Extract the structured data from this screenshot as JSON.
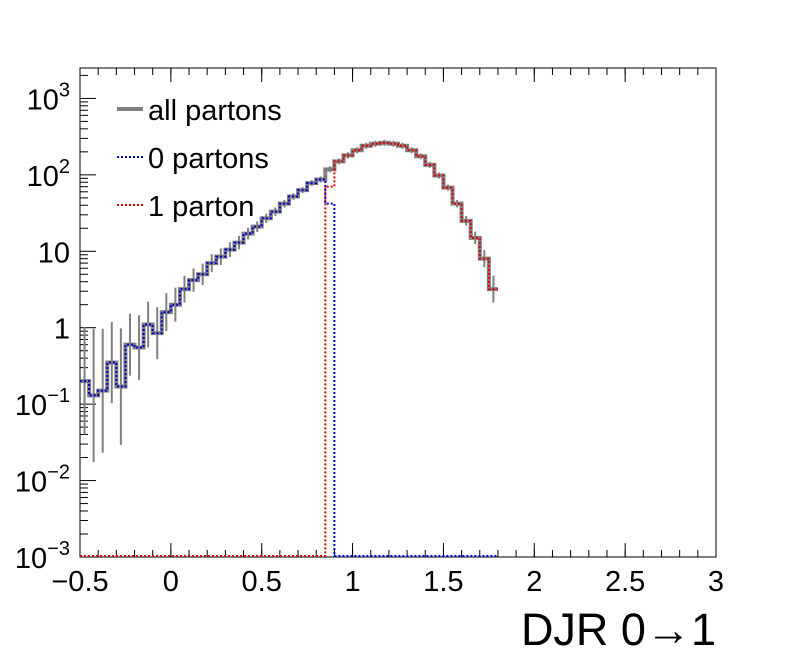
{
  "chart_data": {
    "type": "step-histogram",
    "xlabel": "DJR 0→1",
    "ylabel": "",
    "title": "",
    "xlim": [
      -0.5,
      3.0
    ],
    "ylim": [
      0.001,
      2500
    ],
    "yscale": "log",
    "x_tick_labels": [
      "−0.5",
      "0",
      "0.5",
      "1",
      "1.5",
      "2",
      "2.5",
      "3"
    ],
    "x_tick_values": [
      -0.5,
      0,
      0.5,
      1,
      1.5,
      2,
      2.5,
      3
    ],
    "y_tick_labels": [
      {
        "value": 0.001,
        "base": "10",
        "exp": "−3"
      },
      {
        "value": 0.01,
        "base": "10",
        "exp": "−2"
      },
      {
        "value": 0.1,
        "base": "10",
        "exp": "−1"
      },
      {
        "value": 1,
        "base": "1",
        "exp": ""
      },
      {
        "value": 10,
        "base": "10",
        "exp": ""
      },
      {
        "value": 100,
        "base": "10",
        "exp": "2"
      },
      {
        "value": 1000,
        "base": "10",
        "exp": "3"
      }
    ],
    "legend_position": "top-left",
    "bin_width": 0.05,
    "series": [
      {
        "name": "all partons",
        "color": "#808080",
        "style": "solid",
        "x_start": -0.5,
        "values": [
          0.2,
          0.13,
          0.15,
          0.35,
          0.17,
          0.6,
          0.55,
          1.1,
          0.85,
          1.6,
          2.0,
          3.2,
          4.2,
          5.0,
          7.0,
          8.5,
          10.5,
          13.0,
          17.0,
          21.0,
          27.0,
          33.0,
          42.0,
          52.0,
          63.0,
          78.0,
          87.0,
          118.0,
          150.0,
          180.0,
          210.0,
          240.0,
          255.0,
          262.0,
          255.0,
          240.0,
          210.0,
          175.0,
          135.0,
          98.0,
          68.0,
          42.0,
          25.0,
          15.0,
          8.0,
          3.2
        ]
      },
      {
        "name": "0 partons",
        "color": "#0000cc",
        "style": "dotted",
        "x_start": -0.5,
        "values": [
          0.2,
          0.13,
          0.15,
          0.35,
          0.17,
          0.6,
          0.55,
          1.1,
          0.85,
          1.6,
          2.0,
          3.2,
          4.2,
          5.0,
          7.0,
          8.5,
          10.5,
          13.0,
          17.0,
          21.0,
          27.0,
          33.0,
          42.0,
          52.0,
          63.0,
          78.0,
          87.0,
          42.0,
          0.001,
          0.001,
          0.001,
          0.001,
          0.001,
          0.001,
          0.001,
          0.001,
          0.001,
          0.001,
          0.001,
          0.001,
          0.001,
          0.001,
          0.001,
          0.001,
          0.001,
          0.001
        ]
      },
      {
        "name": "1 parton",
        "color": "#dd0000",
        "style": "dotted",
        "x_start": -0.5,
        "values": [
          0.001,
          0.001,
          0.001,
          0.001,
          0.001,
          0.001,
          0.001,
          0.001,
          0.001,
          0.001,
          0.001,
          0.001,
          0.001,
          0.001,
          0.001,
          0.001,
          0.001,
          0.001,
          0.001,
          0.001,
          0.001,
          0.001,
          0.001,
          0.001,
          0.001,
          0.001,
          0.001,
          70.0,
          150.0,
          180.0,
          210.0,
          240.0,
          255.0,
          262.0,
          255.0,
          240.0,
          210.0,
          175.0,
          135.0,
          98.0,
          68.0,
          42.0,
          25.0,
          15.0,
          8.0,
          3.2
        ]
      }
    ]
  }
}
